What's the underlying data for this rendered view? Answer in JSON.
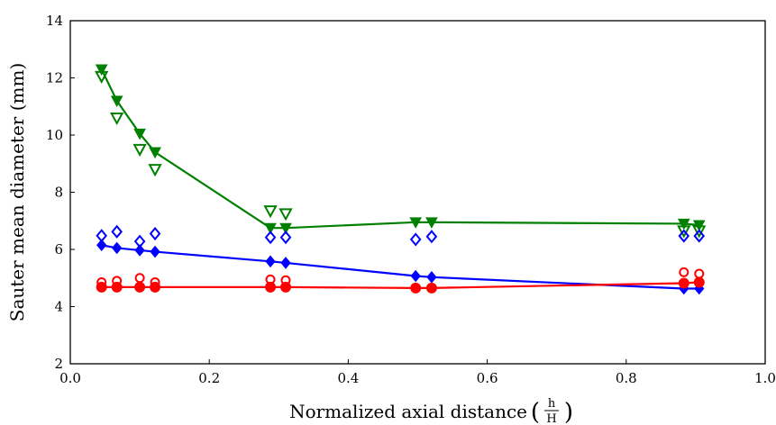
{
  "chart_data": {
    "type": "scatter",
    "title": "",
    "xlabel": "Normalized axial distance",
    "xlabel_fraction": {
      "numerator": "h",
      "denominator": "H"
    },
    "ylabel": "Sauter mean diameter (mm)",
    "xlim": [
      0.0,
      1.0
    ],
    "ylim": [
      2,
      14
    ],
    "xticks": [
      0.0,
      0.2,
      0.4,
      0.6,
      0.8,
      1.0
    ],
    "xtick_labels": [
      "0.0",
      "0.2",
      "0.4",
      "0.6",
      "0.8",
      "1.0"
    ],
    "yticks": [
      2,
      4,
      6,
      8,
      10,
      12,
      14
    ],
    "ytick_labels": [
      "2",
      "4",
      "6",
      "8",
      "10",
      "12",
      "14"
    ],
    "grid": false,
    "legend": "none",
    "series": [
      {
        "color": "#008000",
        "marker": "triangle-down",
        "line": {
          "x": [
            0.045,
            0.067,
            0.1,
            0.122,
            0.288,
            0.31,
            0.497,
            0.52,
            0.883,
            0.905
          ],
          "y": [
            12.3,
            11.2,
            10.05,
            9.4,
            6.75,
            6.75,
            6.95,
            6.95,
            6.9,
            6.85
          ]
        },
        "open": {
          "x": [
            0.045,
            0.067,
            0.1,
            0.122,
            0.288,
            0.31,
            0.883,
            0.905
          ],
          "y": [
            12.05,
            10.6,
            9.5,
            8.8,
            7.35,
            7.25,
            6.65,
            6.65
          ]
        }
      },
      {
        "color": "#0000ff",
        "marker": "diamond",
        "line": {
          "x": [
            0.045,
            0.067,
            0.1,
            0.122,
            0.288,
            0.31,
            0.497,
            0.52,
            0.883,
            0.905
          ],
          "y": [
            6.15,
            6.05,
            5.97,
            5.92,
            5.58,
            5.53,
            5.07,
            5.03,
            4.63,
            4.63
          ]
        },
        "open": {
          "x": [
            0.045,
            0.067,
            0.1,
            0.122,
            0.288,
            0.31,
            0.497,
            0.52,
            0.883,
            0.905
          ],
          "y": [
            6.48,
            6.62,
            6.28,
            6.55,
            6.42,
            6.42,
            6.35,
            6.45,
            6.47,
            6.47
          ]
        }
      },
      {
        "color": "#ff0000",
        "marker": "circle",
        "line": {
          "x": [
            0.045,
            0.067,
            0.1,
            0.122,
            0.288,
            0.31,
            0.497,
            0.52,
            0.883,
            0.905
          ],
          "y": [
            4.68,
            4.68,
            4.68,
            4.68,
            4.68,
            4.68,
            4.65,
            4.65,
            4.82,
            4.85
          ]
        },
        "open": {
          "x": [
            0.045,
            0.067,
            0.1,
            0.122,
            0.288,
            0.31,
            0.883,
            0.905
          ],
          "y": [
            4.85,
            4.9,
            5.0,
            4.85,
            4.95,
            4.92,
            5.2,
            5.15
          ]
        }
      }
    ]
  }
}
